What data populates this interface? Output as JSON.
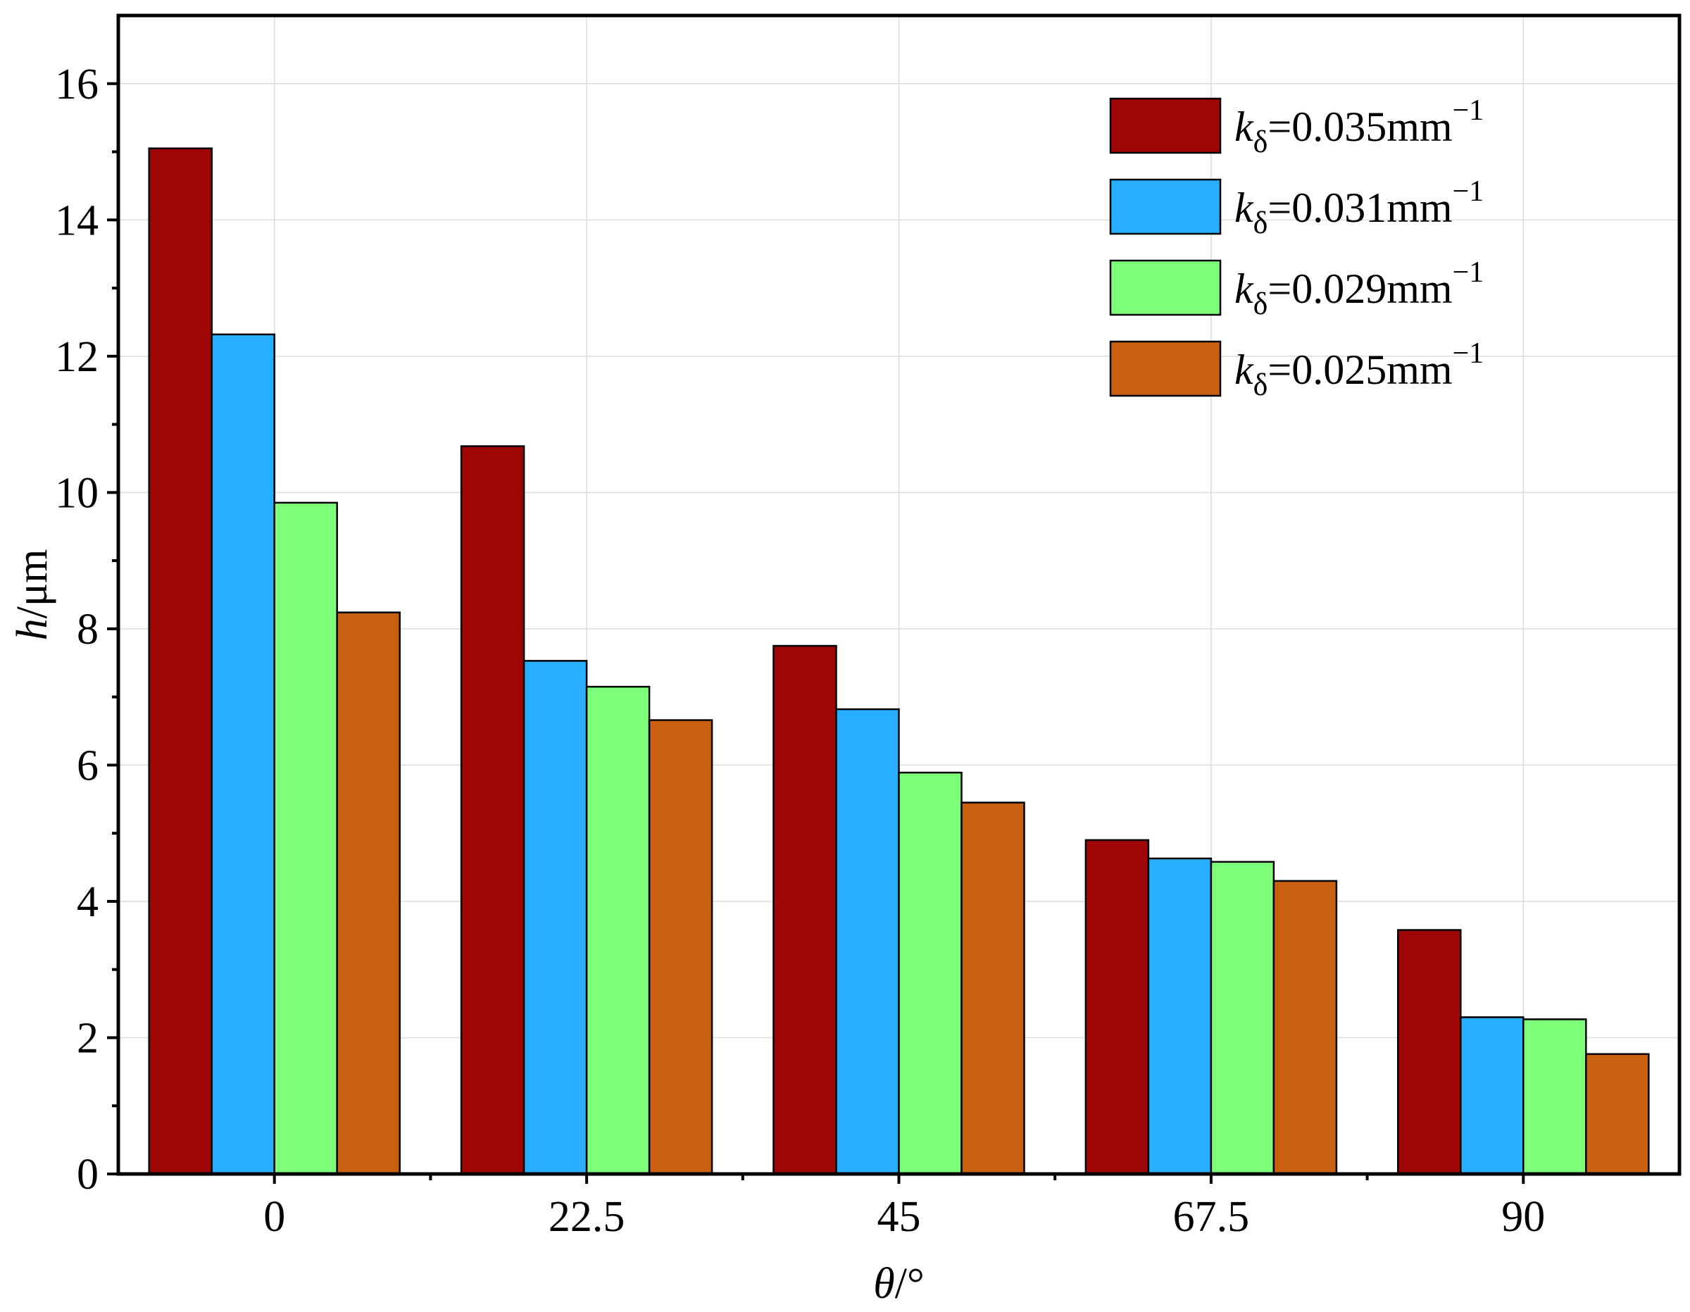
{
  "chart_data": {
    "type": "bar",
    "title": "",
    "xlabel": "θ/°",
    "xlabel_parts": {
      "var": "θ",
      "unit": "/°"
    },
    "ylabel": "h/μm",
    "ylabel_parts": {
      "var": "h",
      "unit": "/μm"
    },
    "categories": [
      "0",
      "22.5",
      "45",
      "67.5",
      "90"
    ],
    "ylim": [
      0,
      17
    ],
    "yticks": [
      0,
      2,
      4,
      6,
      8,
      10,
      12,
      14,
      16
    ],
    "yticks_text": [
      "0",
      "2",
      "4",
      "6",
      "8",
      "10",
      "12",
      "14",
      "16"
    ],
    "grid": true,
    "legend_position": "top-right",
    "series": [
      {
        "name": "kδ=0.035mm−1",
        "legend": {
          "k": "k",
          "sub": "δ",
          "rest": "=0.035mm",
          "sup": "−1"
        },
        "color": "#a00505",
        "values": [
          15.05,
          10.68,
          7.75,
          4.9,
          3.58
        ]
      },
      {
        "name": "kδ=0.031mm−1",
        "legend": {
          "k": "k",
          "sub": "δ",
          "rest": "=0.031mm",
          "sup": "−1"
        },
        "color": "#29aeff",
        "values": [
          12.32,
          7.53,
          6.82,
          4.63,
          2.3
        ]
      },
      {
        "name": "kδ=0.029mm−1",
        "legend": {
          "k": "k",
          "sub": "δ",
          "rest": "=0.029mm",
          "sup": "−1"
        },
        "color": "#7dff7a",
        "values": [
          9.85,
          7.15,
          5.89,
          4.58,
          2.27
        ]
      },
      {
        "name": "kδ=0.025mm−1",
        "legend": {
          "k": "k",
          "sub": "δ",
          "rest": "=0.025mm",
          "sup": "−1"
        },
        "color": "#c8600f",
        "values": [
          8.24,
          6.66,
          5.45,
          4.3,
          1.76
        ]
      }
    ]
  }
}
